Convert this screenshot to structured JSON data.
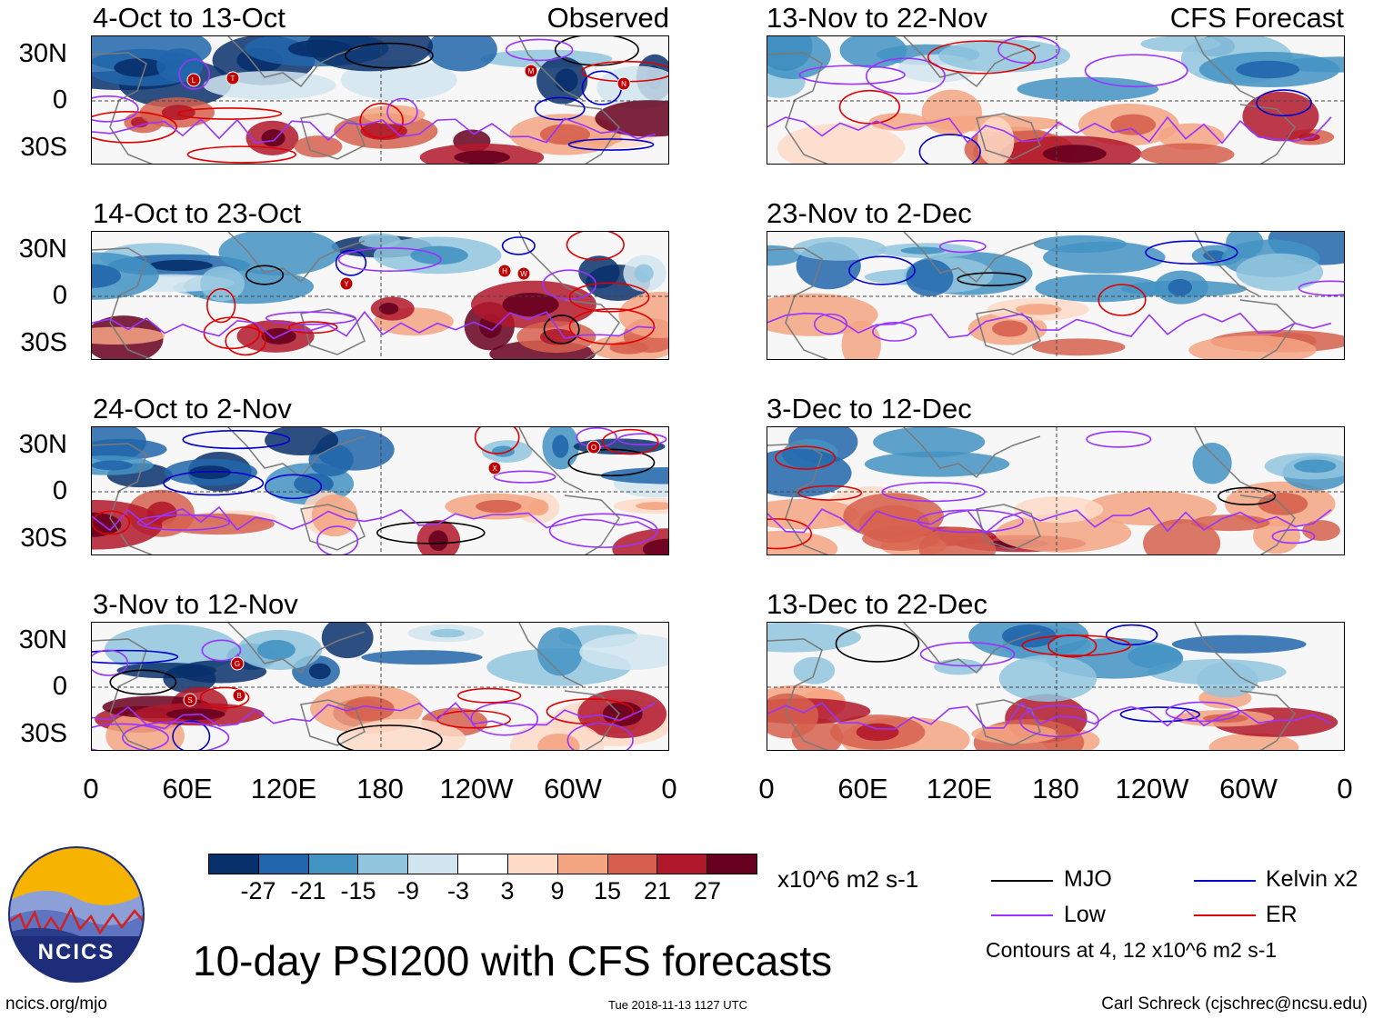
{
  "panels": [
    {
      "title": "4-Oct to 13-Oct",
      "tag": "Observed"
    },
    {
      "title": "14-Oct to 23-Oct",
      "tag": ""
    },
    {
      "title": "24-Oct to 2-Nov",
      "tag": ""
    },
    {
      "title": "3-Nov to 12-Nov",
      "tag": ""
    },
    {
      "title": "13-Nov to 22-Nov",
      "tag": "CFS Forecast"
    },
    {
      "title": "23-Nov to 2-Dec",
      "tag": ""
    },
    {
      "title": "3-Dec to 12-Dec",
      "tag": ""
    },
    {
      "title": "13-Dec to 22-Dec",
      "tag": ""
    }
  ],
  "lat_labels": [
    "30N",
    "0",
    "30S"
  ],
  "lon_labels": [
    "0",
    "60E",
    "120E",
    "180",
    "120W",
    "60W",
    "0"
  ],
  "colorbar": {
    "colors": [
      "#08306b",
      "#2166ac",
      "#4393c3",
      "#92c5de",
      "#d1e5f0",
      "#ffffff",
      "#fddbc7",
      "#f4a582",
      "#d6604d",
      "#b2182b",
      "#67001f"
    ],
    "ticks": [
      "-27",
      "-21",
      "-15",
      "-9",
      "-3",
      "3",
      "9",
      "15",
      "21",
      "27"
    ],
    "units": "x10^6 m2 s-1"
  },
  "legend": {
    "mjo": "MJO",
    "low": "Low",
    "kelvin": "Kelvin x2",
    "er": "ER",
    "contours_note": "Contours at 4, 12 x10^6 m2 s-1",
    "colors": {
      "mjo": "#000000",
      "low": "#9933ff",
      "kelvin": "#0000cc",
      "er": "#e00000"
    }
  },
  "logo": {
    "text": "NCICS"
  },
  "footer": {
    "main_title": "10-day PSI200 with CFS forecasts",
    "site": "ncics.org/mjo",
    "timestamp": "Tue 2018-11-13 1127 UTC",
    "credit": "Carl Schreck (cjschrec@ncsu.edu)"
  },
  "storm_markers": [
    {
      "panel": 0,
      "label": "L"
    },
    {
      "panel": 0,
      "label": "T"
    },
    {
      "panel": 0,
      "label": "M"
    },
    {
      "panel": 0,
      "label": "N"
    },
    {
      "panel": 1,
      "label": "Y"
    },
    {
      "panel": 1,
      "label": "H"
    },
    {
      "panel": 1,
      "label": "W"
    },
    {
      "panel": 2,
      "label": "O"
    },
    {
      "panel": 2,
      "label": "X"
    },
    {
      "panel": 3,
      "label": "G"
    },
    {
      "panel": 3,
      "label": "B"
    },
    {
      "panel": 3,
      "label": "S"
    }
  ]
}
